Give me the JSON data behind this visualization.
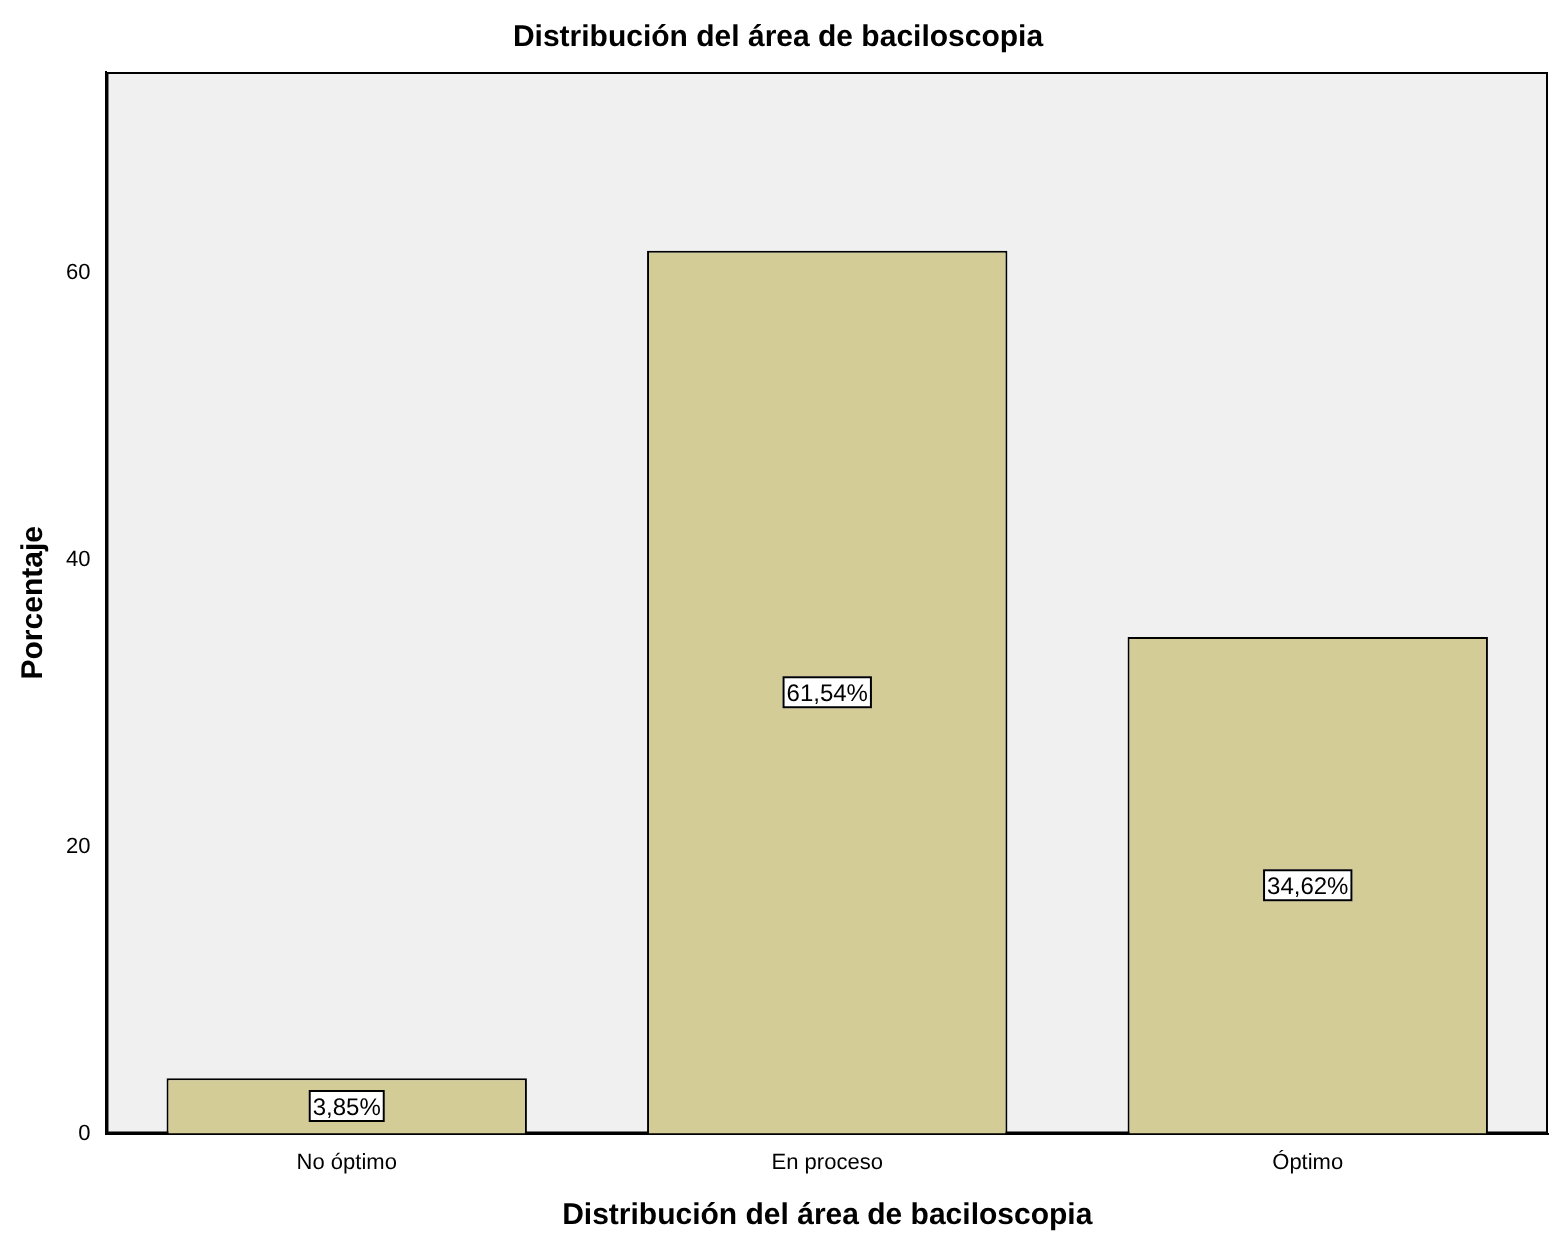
{
  "chart_data": {
    "type": "bar",
    "title": "Distribución del área de baciloscopia",
    "xlabel": "Distribución del área de baciloscopia",
    "ylabel": "Porcentaje",
    "categories": [
      "No óptimo",
      "En proceso",
      "Óptimo"
    ],
    "values": [
      3.85,
      61.54,
      34.62
    ],
    "value_labels": [
      "3,85%",
      "61,54%",
      "34,62%"
    ],
    "color": "#d3cc96",
    "ylim": [
      0,
      74
    ],
    "yticks": [
      0,
      20,
      40,
      60
    ],
    "grid": false,
    "legend": false
  }
}
